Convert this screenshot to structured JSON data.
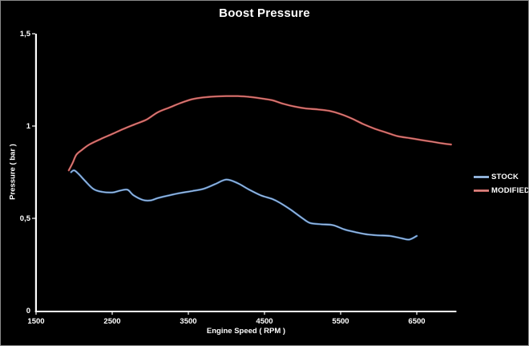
{
  "colors": {
    "background": "#000000",
    "frame_border": "#8A8A8A",
    "axis": "#FFFFFF",
    "text": "#FFFFFF",
    "stock_blue": "#4F81BD",
    "modified_red": "#C0504D"
  },
  "chart_data": {
    "type": "line",
    "title": "Boost Pressure",
    "xlabel": "Engine Speed ( RPM )",
    "ylabel": "Pressure ( bar )",
    "xlim": [
      1500,
      7020
    ],
    "ylim": [
      0,
      1.5
    ],
    "grid": false,
    "legend_position": "right",
    "x_ticks": [
      {
        "value": 1500,
        "label": "1500"
      },
      {
        "value": 2500,
        "label": "2500"
      },
      {
        "value": 3500,
        "label": "3500"
      },
      {
        "value": 4500,
        "label": "4500"
      },
      {
        "value": 5500,
        "label": "5500"
      },
      {
        "value": 6500,
        "label": "6500"
      }
    ],
    "y_ticks": [
      {
        "value": 0,
        "label": "0"
      },
      {
        "value": 0.5,
        "label": "0,5"
      },
      {
        "value": 1,
        "label": "1"
      },
      {
        "value": 1.5,
        "label": "1,5"
      }
    ],
    "series": [
      {
        "name": "STOCK",
        "color": "#4F81BD",
        "highlight": "#C3D6EC",
        "points": [
          [
            1960,
            0.75
          ],
          [
            2000,
            0.76
          ],
          [
            2060,
            0.74
          ],
          [
            2150,
            0.7
          ],
          [
            2250,
            0.66
          ],
          [
            2350,
            0.645
          ],
          [
            2500,
            0.64
          ],
          [
            2600,
            0.65
          ],
          [
            2700,
            0.655
          ],
          [
            2780,
            0.625
          ],
          [
            2900,
            0.6
          ],
          [
            3000,
            0.597
          ],
          [
            3100,
            0.61
          ],
          [
            3250,
            0.625
          ],
          [
            3400,
            0.638
          ],
          [
            3550,
            0.648
          ],
          [
            3700,
            0.66
          ],
          [
            3850,
            0.685
          ],
          [
            4000,
            0.71
          ],
          [
            4150,
            0.69
          ],
          [
            4300,
            0.655
          ],
          [
            4450,
            0.625
          ],
          [
            4600,
            0.605
          ],
          [
            4700,
            0.585
          ],
          [
            4850,
            0.545
          ],
          [
            5000,
            0.5
          ],
          [
            5100,
            0.475
          ],
          [
            5250,
            0.468
          ],
          [
            5400,
            0.463
          ],
          [
            5550,
            0.44
          ],
          [
            5700,
            0.425
          ],
          [
            5850,
            0.413
          ],
          [
            6000,
            0.408
          ],
          [
            6150,
            0.405
          ],
          [
            6300,
            0.392
          ],
          [
            6400,
            0.385
          ],
          [
            6500,
            0.405
          ]
        ]
      },
      {
        "name": "MODIFIED",
        "color": "#BE4B48",
        "highlight": "#DD9A97",
        "points": [
          [
            1930,
            0.76
          ],
          [
            1980,
            0.8
          ],
          [
            2030,
            0.845
          ],
          [
            2100,
            0.87
          ],
          [
            2200,
            0.9
          ],
          [
            2350,
            0.93
          ],
          [
            2500,
            0.957
          ],
          [
            2650,
            0.985
          ],
          [
            2800,
            1.01
          ],
          [
            2950,
            1.035
          ],
          [
            3100,
            1.075
          ],
          [
            3250,
            1.1
          ],
          [
            3400,
            1.125
          ],
          [
            3550,
            1.145
          ],
          [
            3700,
            1.155
          ],
          [
            3850,
            1.16
          ],
          [
            4000,
            1.162
          ],
          [
            4150,
            1.162
          ],
          [
            4300,
            1.158
          ],
          [
            4450,
            1.15
          ],
          [
            4600,
            1.14
          ],
          [
            4750,
            1.12
          ],
          [
            4900,
            1.105
          ],
          [
            5050,
            1.095
          ],
          [
            5200,
            1.09
          ],
          [
            5350,
            1.082
          ],
          [
            5500,
            1.065
          ],
          [
            5650,
            1.04
          ],
          [
            5800,
            1.01
          ],
          [
            5950,
            0.985
          ],
          [
            6100,
            0.965
          ],
          [
            6250,
            0.945
          ],
          [
            6400,
            0.935
          ],
          [
            6550,
            0.925
          ],
          [
            6700,
            0.915
          ],
          [
            6850,
            0.905
          ],
          [
            6950,
            0.9
          ]
        ]
      }
    ]
  }
}
